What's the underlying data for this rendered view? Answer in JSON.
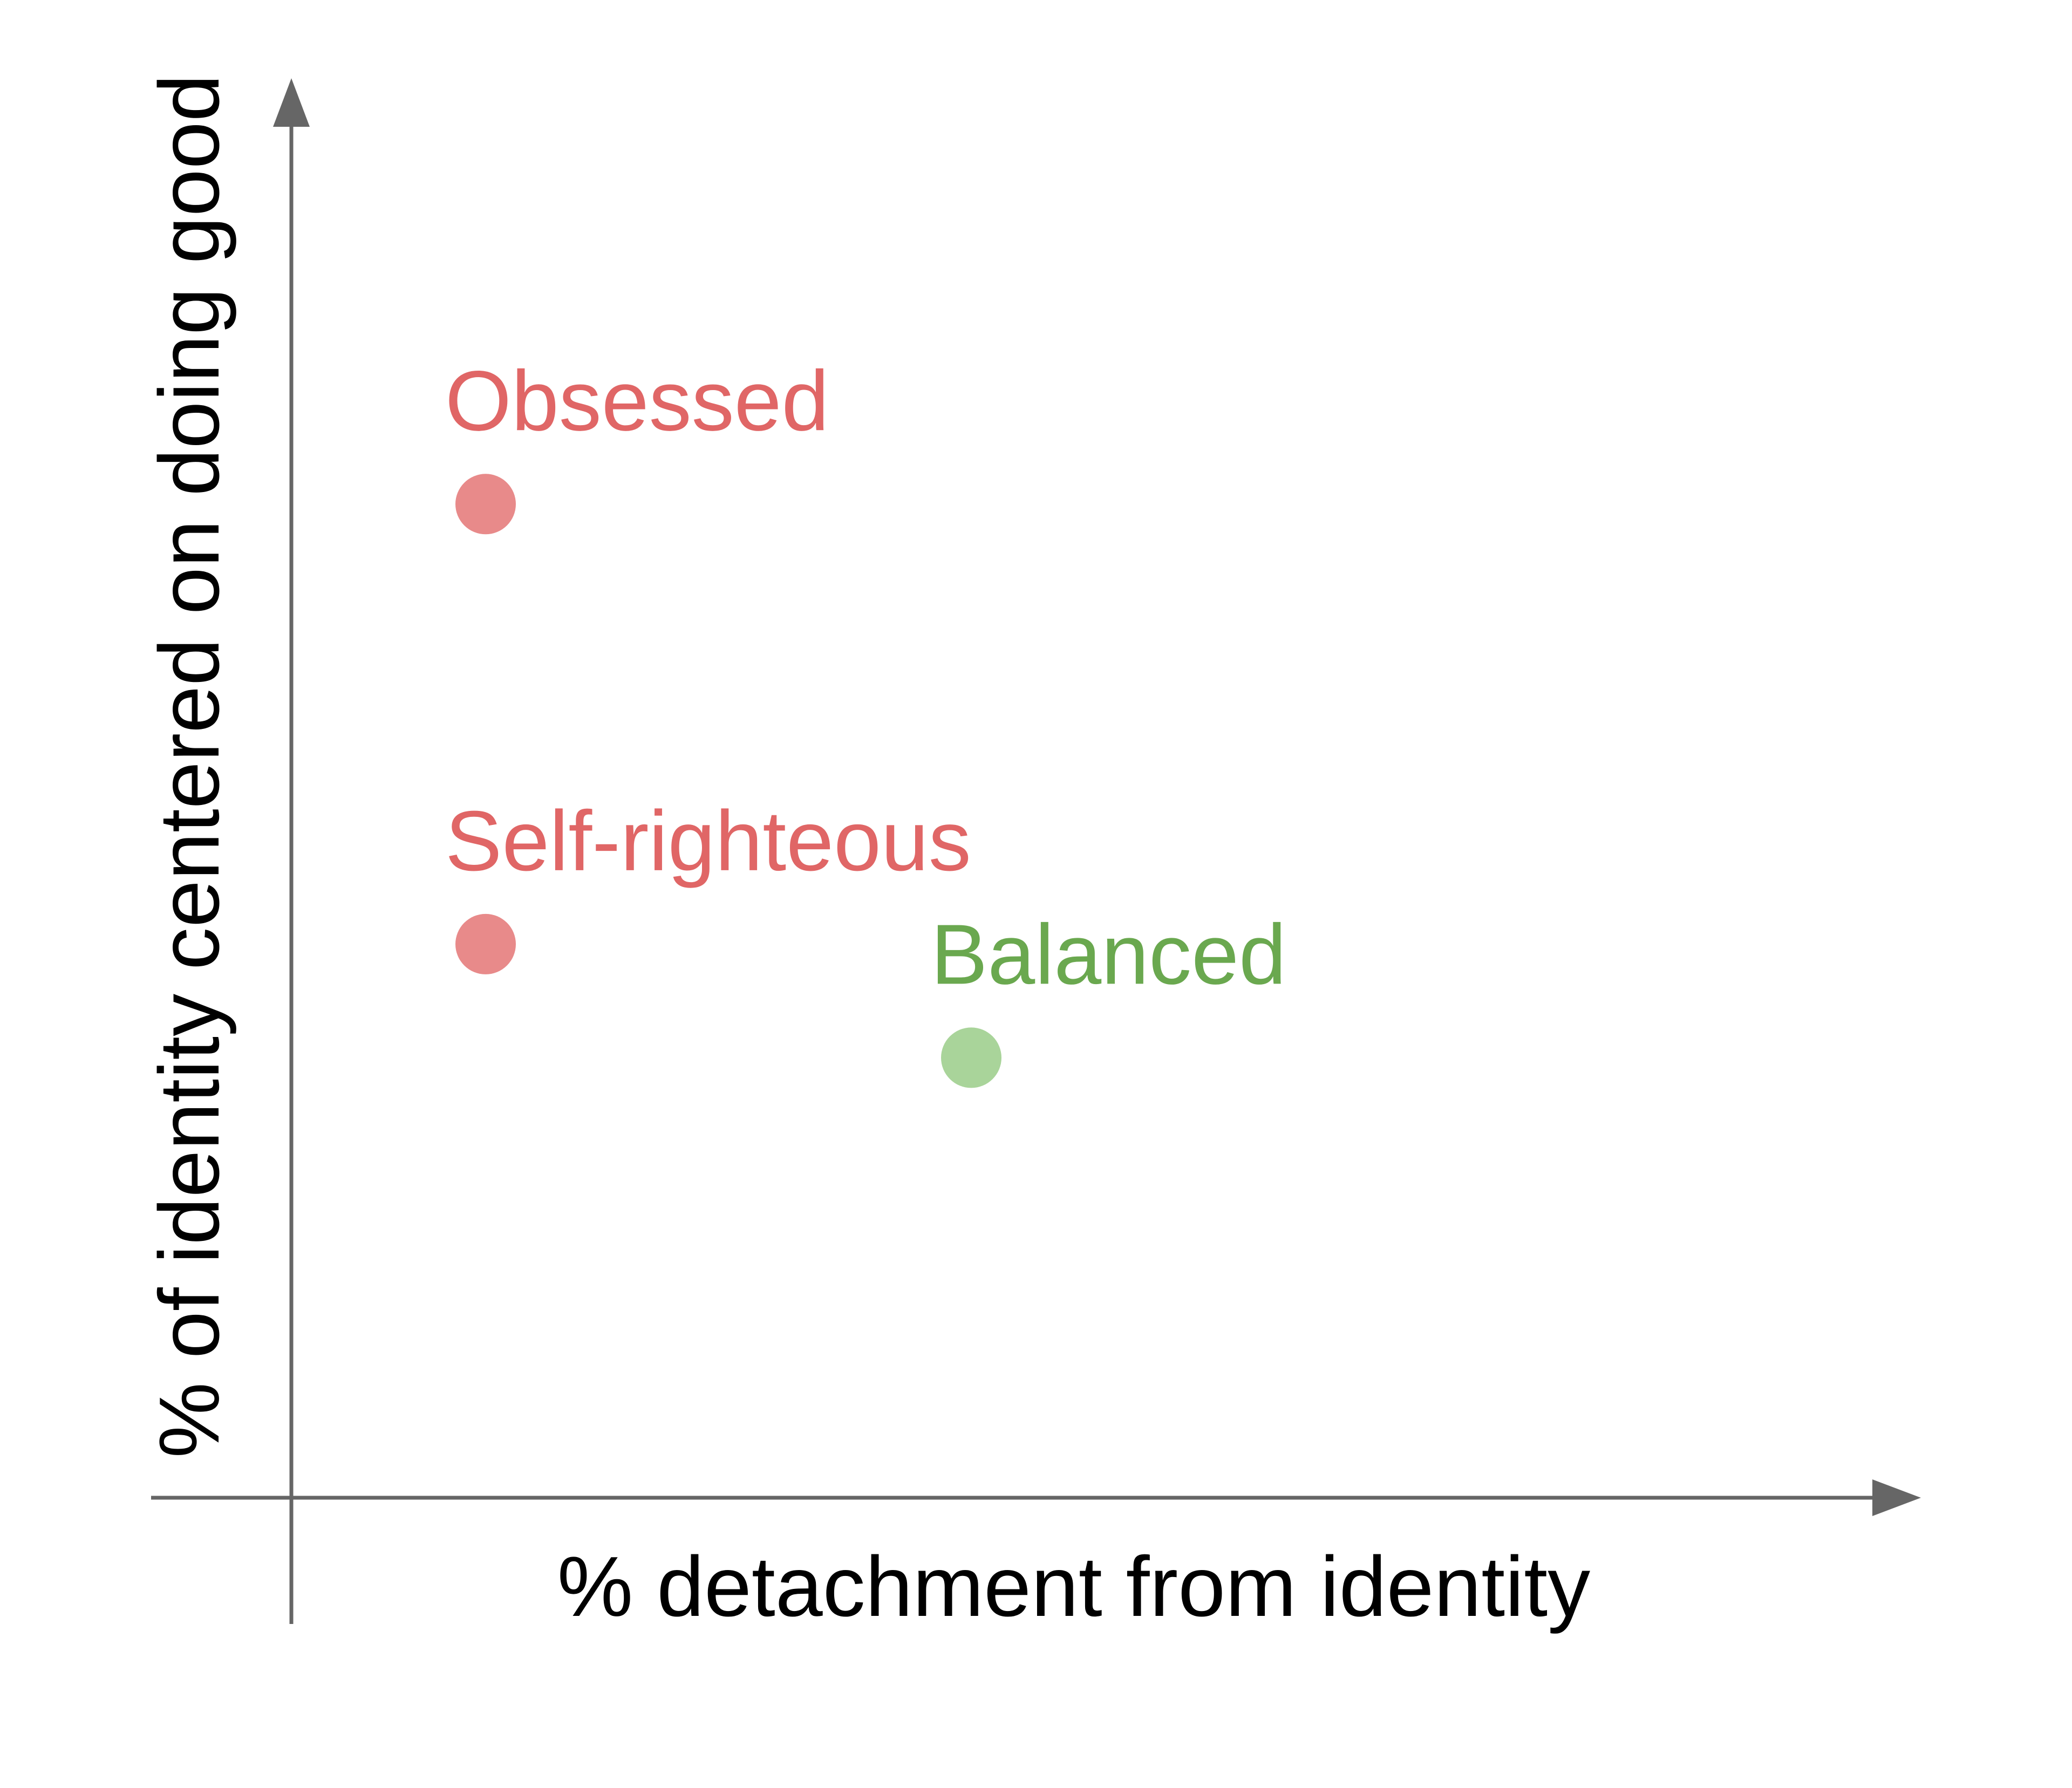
{
  "chart_data": {
    "type": "scatter",
    "title": "",
    "xlabel": "% detachment from identity",
    "ylabel": "% of identity centered on doing good",
    "xlim": [
      0,
      100
    ],
    "ylim": [
      0,
      100
    ],
    "grid": false,
    "legend": "none",
    "ticks": false,
    "points": [
      {
        "label": "Obsessed",
        "x": 12,
        "y": 70,
        "color": "#e88a8a",
        "label_color": "#e06666"
      },
      {
        "label": "Self-righteous",
        "x": 12,
        "y": 39,
        "color": "#e88a8a",
        "label_color": "#e06666"
      },
      {
        "label": "Balanced",
        "x": 42,
        "y": 31,
        "color": "#a9d49a",
        "label_color": "#6aa84f"
      }
    ],
    "axis_color": "#666666"
  }
}
